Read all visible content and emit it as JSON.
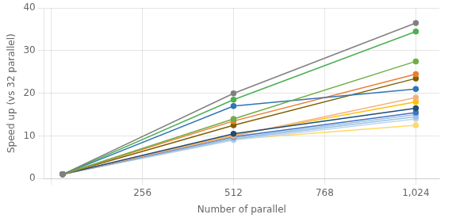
{
  "chart_data": {
    "type": "line",
    "xlabel": "Number of parallel",
    "ylabel": "Speed up (vs 32 parallel)",
    "x": [
      32,
      512,
      1024
    ],
    "series": [
      {
        "color": "#808080",
        "values": [
          1,
          20.0,
          36.5
        ]
      },
      {
        "color": "#4caf50",
        "values": [
          1,
          18.5,
          34.5
        ]
      },
      {
        "color": "#70ad47",
        "values": [
          1,
          14.0,
          27.5
        ]
      },
      {
        "color": "#2e75b6",
        "values": [
          1,
          17.0,
          21.0
        ]
      },
      {
        "color": "#ed7d31",
        "values": [
          1,
          13.5,
          24.5
        ]
      },
      {
        "color": "#7f6000",
        "values": [
          1,
          12.5,
          23.5
        ]
      },
      {
        "color": "#1f4e79",
        "values": [
          1,
          10.5,
          16.5
        ]
      },
      {
        "color": "#f4b183",
        "values": [
          1,
          10.0,
          19.0
        ]
      },
      {
        "color": "#ffc000",
        "values": [
          1,
          10.2,
          18.0
        ]
      },
      {
        "color": "#4472c4",
        "values": [
          1,
          9.8,
          15.5
        ]
      },
      {
        "color": "#9dc3e6",
        "values": [
          1,
          9.5,
          15.0
        ]
      },
      {
        "color": "#9dc3e6",
        "values": [
          1,
          9.3,
          14.5
        ]
      },
      {
        "color": "#bdd7ee",
        "values": [
          1,
          9.0,
          14.0
        ]
      },
      {
        "color": "#ffd966",
        "values": [
          1,
          9.2,
          12.5
        ]
      }
    ],
    "xlim": [
      -20,
      1090
    ],
    "ylim": [
      0,
      40
    ],
    "xticks": [
      {
        "value": 0,
        "label": null
      },
      256,
      512,
      768,
      {
        "value": 1024,
        "label": "1,024"
      }
    ],
    "yticks": [
      0,
      10,
      20,
      30,
      40
    ],
    "marker": "circle",
    "grid": true
  }
}
